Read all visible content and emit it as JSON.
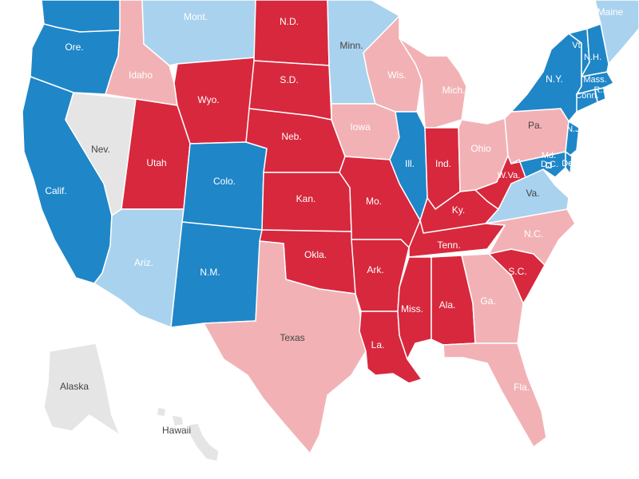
{
  "colors": {
    "safe_dem": "#1f86c8",
    "lean_dem": "#a9d2ee",
    "tossup": "#e5e5e5",
    "lean_rep": "#f2b2b5",
    "safe_rep": "#d8283d"
  },
  "states": [
    {
      "id": "wa",
      "label": "",
      "rating": "safe_dem"
    },
    {
      "id": "or",
      "label": "Ore.",
      "rating": "safe_dem"
    },
    {
      "id": "ca",
      "label": "Calif.",
      "rating": "safe_dem"
    },
    {
      "id": "nv",
      "label": "Nev.",
      "rating": "tossup"
    },
    {
      "id": "id",
      "label": "Idaho",
      "rating": "lean_rep"
    },
    {
      "id": "mt",
      "label": "Mont.",
      "rating": "lean_dem"
    },
    {
      "id": "wy",
      "label": "Wyo.",
      "rating": "safe_rep"
    },
    {
      "id": "ut",
      "label": "Utah",
      "rating": "safe_rep"
    },
    {
      "id": "az",
      "label": "Ariz.",
      "rating": "lean_dem"
    },
    {
      "id": "co",
      "label": "Colo.",
      "rating": "safe_dem"
    },
    {
      "id": "nm",
      "label": "N.M.",
      "rating": "safe_dem"
    },
    {
      "id": "nd",
      "label": "N.D.",
      "rating": "safe_rep"
    },
    {
      "id": "sd",
      "label": "S.D.",
      "rating": "safe_rep"
    },
    {
      "id": "ne",
      "label": "Neb.",
      "rating": "safe_rep"
    },
    {
      "id": "ks",
      "label": "Kan.",
      "rating": "safe_rep"
    },
    {
      "id": "ok",
      "label": "Okla.",
      "rating": "safe_rep"
    },
    {
      "id": "tx",
      "label": "Texas",
      "rating": "lean_rep"
    },
    {
      "id": "mn",
      "label": "Minn.",
      "rating": "lean_dem"
    },
    {
      "id": "ia",
      "label": "Iowa",
      "rating": "lean_rep"
    },
    {
      "id": "mo",
      "label": "Mo.",
      "rating": "safe_rep"
    },
    {
      "id": "ar",
      "label": "Ark.",
      "rating": "safe_rep"
    },
    {
      "id": "la",
      "label": "La.",
      "rating": "safe_rep"
    },
    {
      "id": "wi",
      "label": "Wis.",
      "rating": "lean_rep"
    },
    {
      "id": "il",
      "label": "Ill.",
      "rating": "safe_dem"
    },
    {
      "id": "mi",
      "label": "Mich.",
      "rating": "lean_rep"
    },
    {
      "id": "in",
      "label": "Ind.",
      "rating": "safe_rep"
    },
    {
      "id": "oh",
      "label": "Ohio",
      "rating": "lean_rep"
    },
    {
      "id": "ky",
      "label": "Ky.",
      "rating": "safe_rep"
    },
    {
      "id": "tn",
      "label": "Tenn.",
      "rating": "safe_rep"
    },
    {
      "id": "ms",
      "label": "Miss.",
      "rating": "safe_rep"
    },
    {
      "id": "al",
      "label": "Ala.",
      "rating": "safe_rep"
    },
    {
      "id": "ga",
      "label": "Ga.",
      "rating": "lean_rep"
    },
    {
      "id": "fl",
      "label": "Fla.",
      "rating": "lean_rep"
    },
    {
      "id": "sc",
      "label": "S.C.",
      "rating": "safe_rep"
    },
    {
      "id": "nc",
      "label": "N.C.",
      "rating": "lean_rep"
    },
    {
      "id": "va",
      "label": "Va.",
      "rating": "lean_dem"
    },
    {
      "id": "wv",
      "label": "W.Va.",
      "rating": "safe_rep"
    },
    {
      "id": "pa",
      "label": "Pa.",
      "rating": "lean_rep"
    },
    {
      "id": "ny",
      "label": "N.Y.",
      "rating": "safe_dem"
    },
    {
      "id": "nj",
      "label": "N.J.",
      "rating": "safe_dem"
    },
    {
      "id": "md",
      "label": "Md.",
      "rating": "safe_dem"
    },
    {
      "id": "de",
      "label": "Del.",
      "rating": "safe_dem"
    },
    {
      "id": "dc",
      "label": "D.C.",
      "rating": "safe_dem"
    },
    {
      "id": "ct",
      "label": "Conn.",
      "rating": "safe_dem"
    },
    {
      "id": "ri",
      "label": "R.I.",
      "rating": "safe_dem"
    },
    {
      "id": "ma",
      "label": "Mass.",
      "rating": "safe_dem"
    },
    {
      "id": "vt",
      "label": "Vt.",
      "rating": "safe_dem"
    },
    {
      "id": "nh",
      "label": "N.H.",
      "rating": "safe_dem"
    },
    {
      "id": "me",
      "label": "Maine",
      "rating": "lean_dem"
    },
    {
      "id": "ak",
      "label": "Alaska",
      "rating": "tossup"
    },
    {
      "id": "hi",
      "label": "Hawaii",
      "rating": "tossup"
    }
  ]
}
